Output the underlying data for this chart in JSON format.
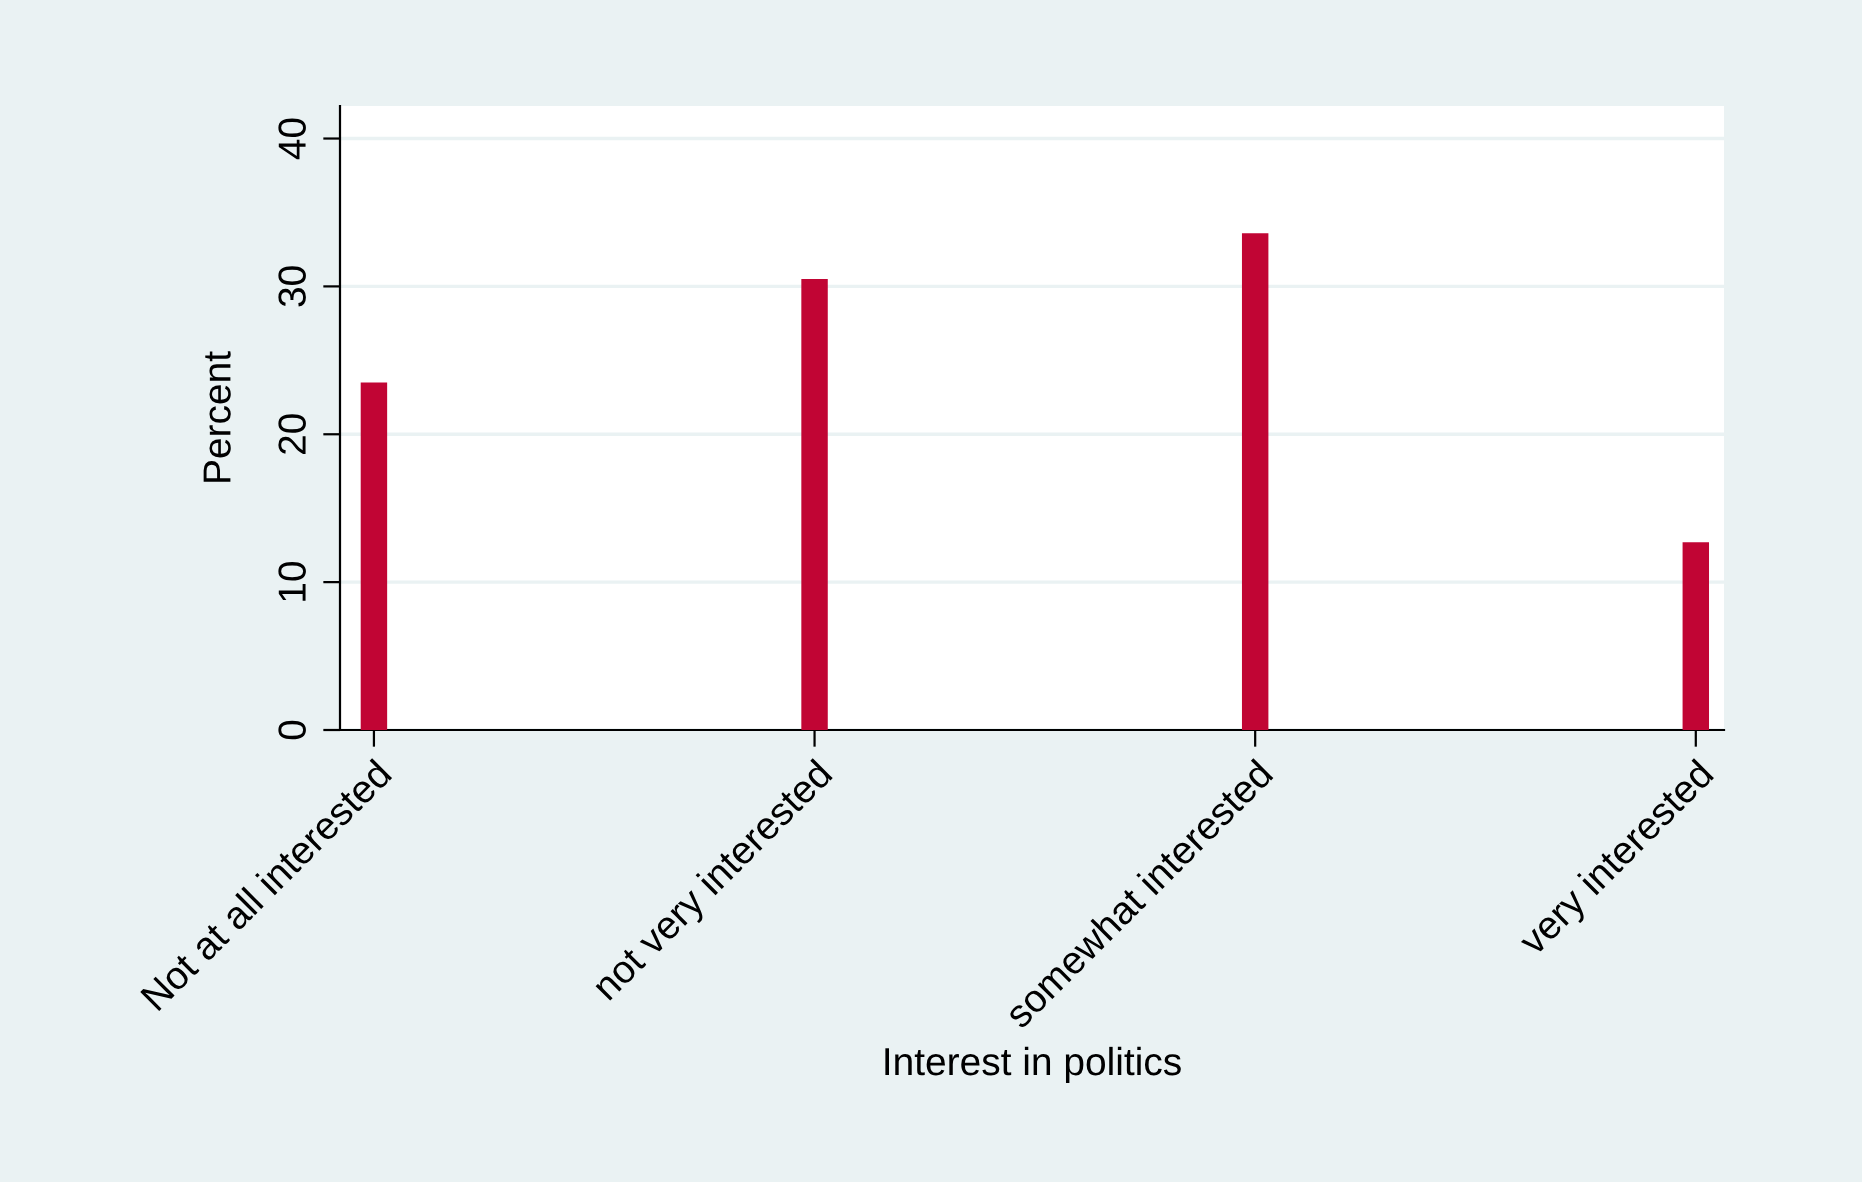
{
  "chart_data": {
    "type": "bar",
    "categories": [
      "Not at all interested",
      "not very interested",
      "somewhat interested",
      "very interested"
    ],
    "values": [
      23.5,
      30.5,
      33.6,
      12.7
    ],
    "color": "#c10534",
    "xlabel": "Interest in politics",
    "ylabel": "Percent",
    "ylim": [
      0,
      42.2
    ],
    "yticks": [
      0,
      10,
      20,
      30,
      40
    ],
    "grid": "y"
  }
}
